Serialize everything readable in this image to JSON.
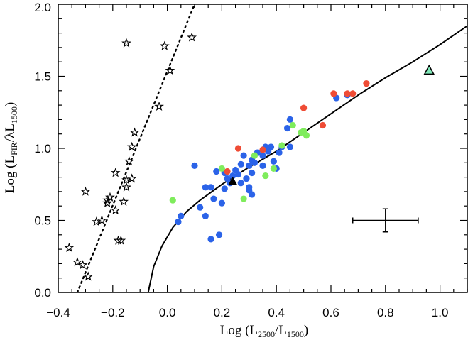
{
  "chart_data": {
    "type": "scatter",
    "xlabel": "Log (L2500/L1500)",
    "xlabel_parts": {
      "pre": "Log (L",
      "sub1": "2500",
      "mid": "/L",
      "sub2": "1500",
      "post": ")"
    },
    "ylabel": "Log (LFIR/λL1500)",
    "ylabel_parts": {
      "pre": "Log (L",
      "sub1": "FIR",
      "mid": "/λL",
      "sub2": "1500",
      "post": ")"
    },
    "xlim": [
      -0.4,
      1.1
    ],
    "ylim": [
      0.0,
      2.0
    ],
    "xticks": [
      -0.4,
      -0.2,
      0.0,
      0.2,
      0.4,
      0.6,
      0.8,
      1.0
    ],
    "xtick_labels": [
      "−0.4",
      "−0.2",
      "0.0",
      "0.2",
      "0.4",
      "0.6",
      "0.8",
      "1.0"
    ],
    "yticks": [
      0.0,
      0.5,
      1.0,
      1.5,
      2.0
    ],
    "ytick_labels": [
      "0.0",
      "0.5",
      "1.0",
      "1.5",
      "2.0"
    ],
    "colors": {
      "blue": "#2b63e8",
      "red": "#ef4c35",
      "green": "#7fec5c",
      "triangle_fill": "#7fe8b8"
    },
    "series": [
      {
        "name": "stars",
        "marker": "star",
        "points": [
          [
            -0.36,
            0.31
          ],
          [
            -0.33,
            0.21
          ],
          [
            -0.31,
            0.19
          ],
          [
            -0.29,
            0.11
          ],
          [
            -0.3,
            0.7
          ],
          [
            -0.26,
            0.49
          ],
          [
            -0.24,
            0.5
          ],
          [
            -0.22,
            0.62
          ],
          [
            -0.22,
            0.64
          ],
          [
            -0.21,
            0.66
          ],
          [
            -0.19,
            0.57
          ],
          [
            -0.18,
            0.36
          ],
          [
            -0.17,
            0.36
          ],
          [
            -0.19,
            0.83
          ],
          [
            -0.16,
            0.63
          ],
          [
            -0.15,
            0.73
          ],
          [
            -0.15,
            0.78
          ],
          [
            -0.13,
            0.79
          ],
          [
            -0.14,
            0.91
          ],
          [
            -0.13,
            1.01
          ],
          [
            -0.12,
            1.11
          ],
          [
            -0.15,
            1.73
          ],
          [
            -0.03,
            1.29
          ],
          [
            -0.01,
            1.71
          ],
          [
            0.01,
            1.54
          ],
          [
            0.09,
            1.77
          ]
        ]
      },
      {
        "name": "blue",
        "marker": "circle",
        "points": [
          [
            0.04,
            0.49
          ],
          [
            0.05,
            0.53
          ],
          [
            0.1,
            0.88
          ],
          [
            0.12,
            0.59
          ],
          [
            0.14,
            0.53
          ],
          [
            0.14,
            0.73
          ],
          [
            0.16,
            0.73
          ],
          [
            0.17,
            0.65
          ],
          [
            0.18,
            0.84
          ],
          [
            0.16,
            0.37
          ],
          [
            0.19,
            0.4
          ],
          [
            0.2,
            0.62
          ],
          [
            0.21,
            0.72
          ],
          [
            0.21,
            0.83
          ],
          [
            0.22,
            0.79
          ],
          [
            0.23,
            0.76
          ],
          [
            0.24,
            0.81
          ],
          [
            0.25,
            0.85
          ],
          [
            0.26,
            0.82
          ],
          [
            0.27,
            0.89
          ],
          [
            0.28,
            0.95
          ],
          [
            0.29,
            0.79
          ],
          [
            0.3,
            0.71
          ],
          [
            0.3,
            0.73
          ],
          [
            0.31,
            0.68
          ],
          [
            0.31,
            0.83
          ],
          [
            0.3,
            0.88
          ],
          [
            0.31,
            0.92
          ],
          [
            0.32,
            0.9
          ],
          [
            0.33,
            0.97
          ],
          [
            0.35,
            0.95
          ],
          [
            0.36,
            1.01
          ],
          [
            0.37,
            0.98
          ],
          [
            0.38,
            1.01
          ],
          [
            0.39,
            0.91
          ],
          [
            0.41,
            0.97
          ],
          [
            0.42,
            1.01
          ],
          [
            0.44,
            1.14
          ],
          [
            0.45,
            1.2
          ],
          [
            0.45,
            1.01
          ],
          [
            0.62,
            1.35
          ],
          [
            0.66,
            1.37
          ],
          [
            0.4,
            0.86
          ],
          [
            0.27,
            0.76
          ],
          [
            0.35,
            0.88
          ]
        ]
      },
      {
        "name": "red",
        "marker": "circle",
        "points": [
          [
            0.22,
            0.84
          ],
          [
            0.26,
            1.0
          ],
          [
            0.35,
            0.99
          ],
          [
            0.5,
            1.28
          ],
          [
            0.57,
            1.16
          ],
          [
            0.61,
            1.38
          ],
          [
            0.66,
            1.38
          ],
          [
            0.68,
            1.38
          ],
          [
            0.73,
            1.45
          ]
        ]
      },
      {
        "name": "green",
        "marker": "circle",
        "points": [
          [
            0.02,
            0.64
          ],
          [
            0.2,
            0.86
          ],
          [
            0.28,
            0.65
          ],
          [
            0.32,
            0.95
          ],
          [
            0.36,
            0.81
          ],
          [
            0.39,
            0.86
          ],
          [
            0.42,
            1.02
          ],
          [
            0.46,
            1.16
          ],
          [
            0.49,
            1.11
          ],
          [
            0.5,
            1.12
          ],
          [
            0.51,
            1.09
          ]
        ]
      },
      {
        "name": "black-triangle",
        "marker": "triangle",
        "points": [
          [
            0.24,
            0.77
          ]
        ]
      },
      {
        "name": "cyan-triangle",
        "marker": "triangle",
        "points": [
          [
            0.96,
            1.54
          ]
        ]
      }
    ],
    "lines": [
      {
        "name": "dotted-fit",
        "style": "dotted",
        "points": [
          [
            -0.33,
            0.0
          ],
          [
            0.1,
            2.0
          ]
        ]
      },
      {
        "name": "solid-curve",
        "style": "solid",
        "points": [
          [
            -0.07,
            0.0
          ],
          [
            -0.05,
            0.18
          ],
          [
            -0.02,
            0.32
          ],
          [
            0.02,
            0.45
          ],
          [
            0.07,
            0.56
          ],
          [
            0.12,
            0.64
          ],
          [
            0.2,
            0.75
          ],
          [
            0.3,
            0.87
          ],
          [
            0.4,
            0.98
          ],
          [
            0.5,
            1.11
          ],
          [
            0.6,
            1.24
          ],
          [
            0.7,
            1.37
          ],
          [
            0.8,
            1.49
          ],
          [
            0.9,
            1.6
          ],
          [
            1.0,
            1.72
          ],
          [
            1.1,
            1.85
          ]
        ]
      }
    ],
    "error_bar": {
      "x": 0.8,
      "y": 0.5,
      "x_err": 0.12,
      "y_err": 0.08
    }
  }
}
